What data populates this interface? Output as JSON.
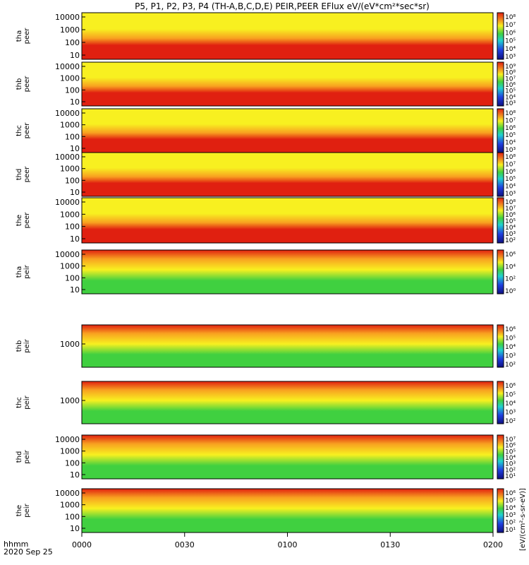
{
  "title": "P5, P1, P2, P3, P4 (TH-A,B,C,D,E) PEIR,PEER EFlux eV/(eV*cm²*sec*sr)",
  "time_label": "hhmm",
  "date_label": "2020 Sep 25",
  "colorbar_unit_label": "[eV/(cm²-s-sr-eV)]",
  "chart_data": {
    "type": "heatmap",
    "x_axis": {
      "ticks": [
        "0000",
        "0030",
        "0100",
        "0130",
        "0200"
      ],
      "range": [
        "00:00",
        "02:00"
      ]
    },
    "colors": {
      "red": "#e02010",
      "yellow": "#f8f020",
      "green": "#40d040",
      "blue": "#2040e0",
      "black": "#000000"
    },
    "panels": [
      {
        "name_line1": "tha",
        "name_line2": "peer",
        "yticks": [
          "10000",
          "1000",
          "100",
          "10"
        ],
        "ylog": true,
        "cbar_labels": [
          "10⁸",
          "10⁷",
          "10⁶",
          "10⁵",
          "10⁴",
          "10³"
        ]
      },
      {
        "name_line1": "thb",
        "name_line2": "peer",
        "yticks": [
          "10000",
          "1000",
          "100",
          "10"
        ],
        "ylog": true,
        "cbar_labels": [
          "10⁹",
          "10⁸",
          "10⁷",
          "10⁶",
          "10⁵",
          "10⁴",
          "10³"
        ]
      },
      {
        "name_line1": "thc",
        "name_line2": "peer",
        "yticks": [
          "10000",
          "1000",
          "100",
          "10"
        ],
        "ylog": true,
        "cbar_labels": [
          "10⁸",
          "10⁷",
          "10⁶",
          "10⁵",
          "10⁴",
          "10³"
        ]
      },
      {
        "name_line1": "thd",
        "name_line2": "peer",
        "yticks": [
          "10000",
          "1000",
          "100",
          "10"
        ],
        "ylog": true,
        "cbar_labels": [
          "10⁸",
          "10⁷",
          "10⁶",
          "10⁵",
          "10⁴",
          "10³"
        ]
      },
      {
        "name_line1": "the",
        "name_line2": "peer",
        "yticks": [
          "10000",
          "1000",
          "100",
          "10"
        ],
        "ylog": true,
        "cbar_labels": [
          "10⁸",
          "10⁷",
          "10⁶",
          "10⁵",
          "10⁴",
          "10³",
          "10²"
        ]
      },
      {
        "name_line1": "tha",
        "name_line2": "peir",
        "yticks": [
          "10000",
          "1000",
          "100",
          "10"
        ],
        "ylog": true,
        "cbar_labels": [
          "10⁶",
          "10⁴",
          "10²",
          "10⁰"
        ]
      },
      {
        "name_line1": "thb",
        "name_line2": "peir",
        "yticks": [
          "1000"
        ],
        "ylog": true,
        "cbar_labels": [
          "10⁶",
          "10⁵",
          "10⁴",
          "10³",
          "10²"
        ]
      },
      {
        "name_line1": "thc",
        "name_line2": "peir",
        "yticks": [
          "1000"
        ],
        "ylog": true,
        "cbar_labels": [
          "10⁶",
          "10⁵",
          "10⁴",
          "10³",
          "10²"
        ]
      },
      {
        "name_line1": "thd",
        "name_line2": "peir",
        "yticks": [
          "10000",
          "1000",
          "100",
          "10"
        ],
        "ylog": true,
        "cbar_labels": [
          "10⁷",
          "10⁶",
          "10⁵",
          "10⁴",
          "10³",
          "10²",
          "10¹"
        ]
      },
      {
        "name_line1": "the",
        "name_line2": "peir",
        "yticks": [
          "10000",
          "1000",
          "100",
          "10"
        ],
        "ylog": true,
        "cbar_labels": [
          "10⁶",
          "10⁵",
          "10⁴",
          "10³",
          "10²",
          "10¹"
        ]
      }
    ]
  }
}
